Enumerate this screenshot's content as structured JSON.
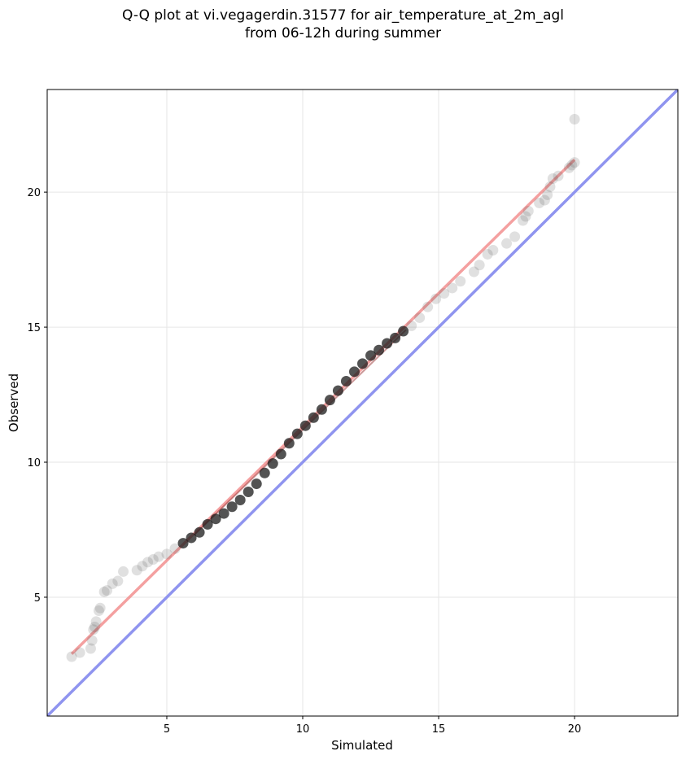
{
  "chart_data": {
    "type": "scatter",
    "title": "Q-Q plot at vi.vegagerdin.31577 for air_temperature_at_2m_agl",
    "subtitle": "from 06-12h during summer",
    "xlabel": "Simulated",
    "ylabel": "Observed",
    "xlim": [
      0.6,
      23.8
    ],
    "ylim": [
      0.6,
      23.8
    ],
    "xticks": [
      5,
      10,
      15,
      20
    ],
    "yticks": [
      5,
      10,
      15,
      20
    ],
    "grid": true,
    "points": [
      [
        1.5,
        2.8
      ],
      [
        1.8,
        2.95
      ],
      [
        2.2,
        3.1
      ],
      [
        2.25,
        3.4
      ],
      [
        2.3,
        3.8
      ],
      [
        2.35,
        3.9
      ],
      [
        2.4,
        4.1
      ],
      [
        2.5,
        4.5
      ],
      [
        2.55,
        4.6
      ],
      [
        2.7,
        5.2
      ],
      [
        2.8,
        5.25
      ],
      [
        3.0,
        5.5
      ],
      [
        3.2,
        5.6
      ],
      [
        3.4,
        5.95
      ],
      [
        3.9,
        6.0
      ],
      [
        4.1,
        6.15
      ],
      [
        4.3,
        6.3
      ],
      [
        4.5,
        6.4
      ],
      [
        4.7,
        6.5
      ],
      [
        5.0,
        6.6
      ],
      [
        5.3,
        6.8
      ],
      [
        5.6,
        7.0
      ],
      [
        5.9,
        7.2
      ],
      [
        6.2,
        7.4
      ],
      [
        6.5,
        7.7
      ],
      [
        6.8,
        7.9
      ],
      [
        7.1,
        8.1
      ],
      [
        7.4,
        8.35
      ],
      [
        7.7,
        8.6
      ],
      [
        8.0,
        8.9
      ],
      [
        8.3,
        9.2
      ],
      [
        8.6,
        9.6
      ],
      [
        8.9,
        9.95
      ],
      [
        9.2,
        10.3
      ],
      [
        9.5,
        10.7
      ],
      [
        9.8,
        11.05
      ],
      [
        10.1,
        11.35
      ],
      [
        10.4,
        11.65
      ],
      [
        10.7,
        11.95
      ],
      [
        11.0,
        12.3
      ],
      [
        11.3,
        12.65
      ],
      [
        11.6,
        13.0
      ],
      [
        11.9,
        13.35
      ],
      [
        12.2,
        13.65
      ],
      [
        12.5,
        13.95
      ],
      [
        12.8,
        14.15
      ],
      [
        13.1,
        14.4
      ],
      [
        13.4,
        14.6
      ],
      [
        13.7,
        14.85
      ],
      [
        14.0,
        15.05
      ],
      [
        14.3,
        15.35
      ],
      [
        14.6,
        15.75
      ],
      [
        14.9,
        16.05
      ],
      [
        15.2,
        16.25
      ],
      [
        15.5,
        16.45
      ],
      [
        15.8,
        16.7
      ],
      [
        16.3,
        17.05
      ],
      [
        16.5,
        17.3
      ],
      [
        16.8,
        17.7
      ],
      [
        17.0,
        17.85
      ],
      [
        17.5,
        18.1
      ],
      [
        17.8,
        18.35
      ],
      [
        18.1,
        18.95
      ],
      [
        18.2,
        19.1
      ],
      [
        18.3,
        19.3
      ],
      [
        18.7,
        19.6
      ],
      [
        18.9,
        19.7
      ],
      [
        19.0,
        19.9
      ],
      [
        19.1,
        20.2
      ],
      [
        19.2,
        20.5
      ],
      [
        19.4,
        20.6
      ],
      [
        19.8,
        20.9
      ],
      [
        19.9,
        21.0
      ],
      [
        20.0,
        21.1
      ],
      [
        20.0,
        22.7
      ]
    ],
    "fit_line": [
      [
        1.5,
        2.9
      ],
      [
        20.0,
        21.2
      ]
    ],
    "reference_line": [
      [
        0.6,
        0.6
      ],
      [
        23.8,
        23.8
      ]
    ],
    "colors": {
      "points": "#555555",
      "dense_points": "#1a1a1a",
      "fit_line": "#f08080",
      "fit_line_overlap": "#8b1a1a",
      "reference_line": "#8f94ef",
      "grid": "#e6e6e6"
    }
  }
}
